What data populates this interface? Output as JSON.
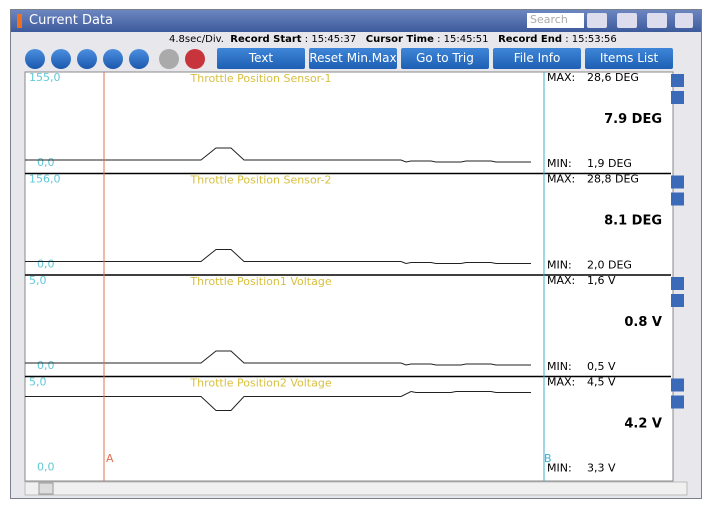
{
  "window": {
    "title": "Current Data",
    "search_placeholder": "Search"
  },
  "info": {
    "time_div": "4.8sec/Div.",
    "record_start": {
      "label": "Record Start",
      "value": ": 15:45:37"
    },
    "cursor_time": {
      "label": "Cursor Time",
      "value": ": 15:45:51"
    },
    "record_end": {
      "label": "Record End",
      "value": ": 15:53:56"
    }
  },
  "toolbar": {
    "view_mode": "Text",
    "buttons": [
      "Reset Min.Max",
      "Go to Trig",
      "File Info",
      "Items List"
    ]
  },
  "panels": [
    {
      "name": "Throttle Position Sensor-1",
      "axis_max": "155,0",
      "axis_min": "0,0",
      "max": {
        "label": "MAX:",
        "value": "28,6 DEG"
      },
      "current": "7.9 DEG",
      "min": {
        "label": "MIN:",
        "value": "1,9 DEG"
      }
    },
    {
      "name": "Throttle Position Sensor-2",
      "axis_max": "156,0",
      "axis_min": "0,0",
      "max": {
        "label": "MAX:",
        "value": "28,8 DEG"
      },
      "current": "8.1 DEG",
      "min": {
        "label": "MIN:",
        "value": "2,0 DEG"
      }
    },
    {
      "name": "Throttle Position1 Voltage",
      "axis_max": "5,0",
      "axis_min": "0,0",
      "max": {
        "label": "MAX:",
        "value": "1,6 V"
      },
      "current": "0.8 V",
      "min": {
        "label": "MIN:",
        "value": "0,5 V"
      }
    },
    {
      "name": "Throttle Position2 Voltage",
      "axis_max": "5,0",
      "axis_min": "0,0",
      "max": {
        "label": "MAX:",
        "value": "4,5 V"
      },
      "current": "4.2 V",
      "min": {
        "label": "MIN:",
        "value": "3,3 V"
      }
    }
  ],
  "cursors": {
    "a": "A",
    "b": "B"
  }
}
